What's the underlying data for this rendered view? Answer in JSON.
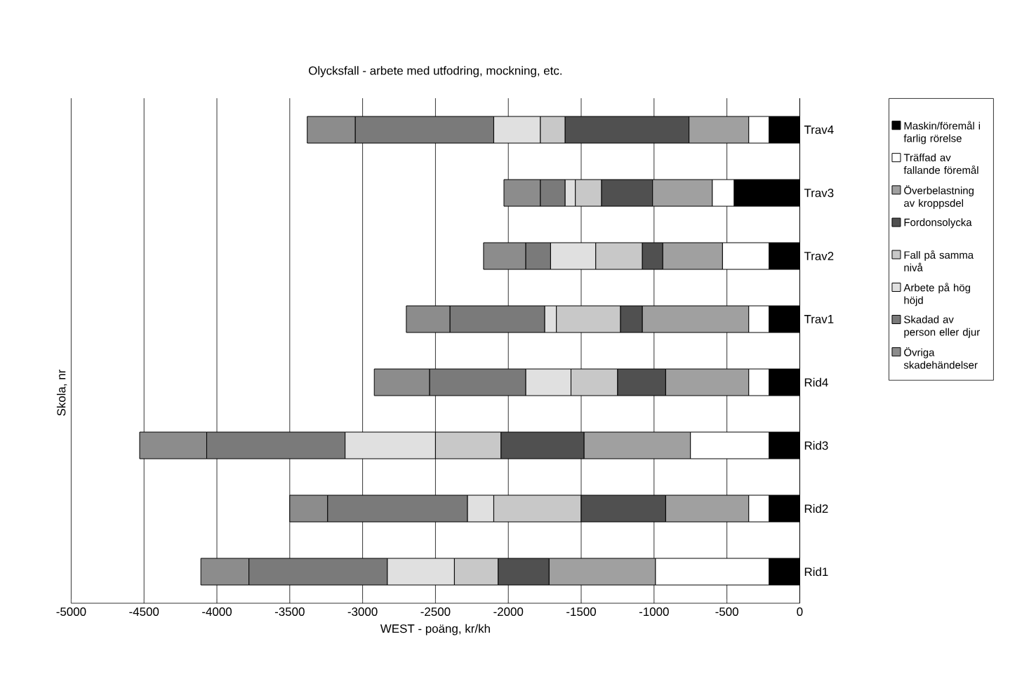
{
  "chart_data": {
    "type": "bar",
    "orientation": "horizontal",
    "stacked": true,
    "title": "Olycksfall - arbete med utfodring, mockning, etc.",
    "xlabel": "WEST - poäng, kr/kh",
    "ylabel": "Skola, nr",
    "categories": [
      "Trav4",
      "Trav3",
      "Trav2",
      "Trav1",
      "Rid4",
      "Rid3",
      "Rid2",
      "Rid1"
    ],
    "series": [
      {
        "name": "Maskin/föremål i farlig rörelse",
        "color": "#000000",
        "values": [
          -210,
          -450,
          -210,
          -210,
          -210,
          -210,
          -210,
          -210
        ]
      },
      {
        "name": "Träffad av fallande föremål",
        "color": "#ffffff",
        "values": [
          -140,
          -150,
          -320,
          -140,
          -140,
          -540,
          -140,
          -780
        ]
      },
      {
        "name": "Överbelastning av kroppsdel",
        "color": "#a0a0a0",
        "values": [
          -410,
          -410,
          -410,
          -730,
          -570,
          -730,
          -570,
          -730
        ]
      },
      {
        "name": "Fordonsolycka",
        "color": "#505050",
        "values": [
          -850,
          -350,
          -140,
          -150,
          -330,
          -570,
          -580,
          -350
        ]
      },
      {
        "name": "Fall på samma nivå",
        "color": "#c8c8c8",
        "values": [
          -170,
          -180,
          -320,
          -440,
          -320,
          -450,
          -600,
          -300
        ]
      },
      {
        "name": "Arbete på hög höjd",
        "color": "#e0e0e0",
        "values": [
          -320,
          -70,
          -310,
          -80,
          -310,
          -620,
          -180,
          -460
        ]
      },
      {
        "name": "Skadad av person eller djur",
        "color": "#7a7a7a",
        "values": [
          -950,
          -170,
          -170,
          -650,
          -660,
          -950,
          -960,
          -950
        ]
      },
      {
        "name": "Övriga skadehändelser",
        "color": "#8c8c8c",
        "values": [
          -330,
          -250,
          -290,
          -300,
          -380,
          -460,
          -260,
          -330
        ]
      }
    ],
    "xlim": [
      -5000,
      0
    ],
    "xticks": [
      -5000,
      -4500,
      -4000,
      -3500,
      -3000,
      -2500,
      -2000,
      -1500,
      -1000,
      -500,
      0
    ],
    "grid": "x",
    "legend": "right"
  }
}
